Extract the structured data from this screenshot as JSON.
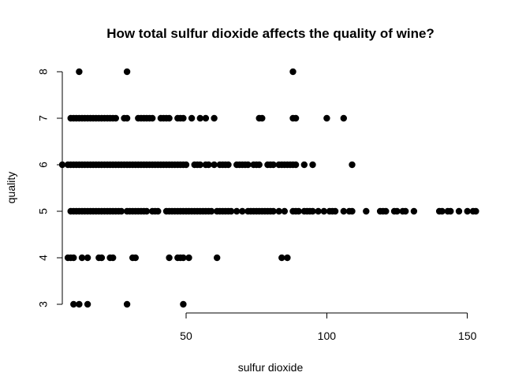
{
  "chart_data": {
    "type": "scatter",
    "title": "How total sulfur dioxide affects the quality of wine?",
    "xlabel": "sulfur dioxide",
    "ylabel": "quality",
    "xlim": [
      6,
      154
    ],
    "ylim": [
      3,
      8
    ],
    "x_ticks": [
      50,
      100,
      150
    ],
    "y_ticks": [
      3,
      4,
      5,
      6,
      7,
      8
    ],
    "grid": false,
    "legend": "none",
    "marker": "filled-circle",
    "point_color": "#000000",
    "series": [
      {
        "points": [
          {
            "x": 12,
            "y": 8
          },
          {
            "x": 29,
            "y": 8
          },
          {
            "x": 88,
            "y": 8
          },
          {
            "x": 9,
            "y": 7
          },
          {
            "x": 10,
            "y": 7
          },
          {
            "x": 11,
            "y": 7
          },
          {
            "x": 12,
            "y": 7
          },
          {
            "x": 13,
            "y": 7
          },
          {
            "x": 14,
            "y": 7
          },
          {
            "x": 15,
            "y": 7
          },
          {
            "x": 16,
            "y": 7
          },
          {
            "x": 17,
            "y": 7
          },
          {
            "x": 18,
            "y": 7
          },
          {
            "x": 19,
            "y": 7
          },
          {
            "x": 20,
            "y": 7
          },
          {
            "x": 21,
            "y": 7
          },
          {
            "x": 22,
            "y": 7
          },
          {
            "x": 23,
            "y": 7
          },
          {
            "x": 24,
            "y": 7
          },
          {
            "x": 25,
            "y": 7
          },
          {
            "x": 28,
            "y": 7
          },
          {
            "x": 29,
            "y": 7
          },
          {
            "x": 33,
            "y": 7
          },
          {
            "x": 34,
            "y": 7
          },
          {
            "x": 35,
            "y": 7
          },
          {
            "x": 36,
            "y": 7
          },
          {
            "x": 37,
            "y": 7
          },
          {
            "x": 38,
            "y": 7
          },
          {
            "x": 41,
            "y": 7
          },
          {
            "x": 42,
            "y": 7
          },
          {
            "x": 43,
            "y": 7
          },
          {
            "x": 44,
            "y": 7
          },
          {
            "x": 47,
            "y": 7
          },
          {
            "x": 48,
            "y": 7
          },
          {
            "x": 49,
            "y": 7
          },
          {
            "x": 52,
            "y": 7
          },
          {
            "x": 55,
            "y": 7
          },
          {
            "x": 57,
            "y": 7
          },
          {
            "x": 60,
            "y": 7
          },
          {
            "x": 76,
            "y": 7
          },
          {
            "x": 77,
            "y": 7
          },
          {
            "x": 88,
            "y": 7
          },
          {
            "x": 89,
            "y": 7
          },
          {
            "x": 100,
            "y": 7
          },
          {
            "x": 106,
            "y": 7
          },
          {
            "x": 6,
            "y": 6
          },
          {
            "x": 8,
            "y": 6
          },
          {
            "x": 9,
            "y": 6
          },
          {
            "x": 10,
            "y": 6
          },
          {
            "x": 11,
            "y": 6
          },
          {
            "x": 12,
            "y": 6
          },
          {
            "x": 13,
            "y": 6
          },
          {
            "x": 14,
            "y": 6
          },
          {
            "x": 15,
            "y": 6
          },
          {
            "x": 16,
            "y": 6
          },
          {
            "x": 17,
            "y": 6
          },
          {
            "x": 18,
            "y": 6
          },
          {
            "x": 19,
            "y": 6
          },
          {
            "x": 20,
            "y": 6
          },
          {
            "x": 21,
            "y": 6
          },
          {
            "x": 22,
            "y": 6
          },
          {
            "x": 23,
            "y": 6
          },
          {
            "x": 24,
            "y": 6
          },
          {
            "x": 25,
            "y": 6
          },
          {
            "x": 26,
            "y": 6
          },
          {
            "x": 27,
            "y": 6
          },
          {
            "x": 28,
            "y": 6
          },
          {
            "x": 29,
            "y": 6
          },
          {
            "x": 30,
            "y": 6
          },
          {
            "x": 31,
            "y": 6
          },
          {
            "x": 32,
            "y": 6
          },
          {
            "x": 33,
            "y": 6
          },
          {
            "x": 34,
            "y": 6
          },
          {
            "x": 35,
            "y": 6
          },
          {
            "x": 36,
            "y": 6
          },
          {
            "x": 37,
            "y": 6
          },
          {
            "x": 38,
            "y": 6
          },
          {
            "x": 39,
            "y": 6
          },
          {
            "x": 40,
            "y": 6
          },
          {
            "x": 41,
            "y": 6
          },
          {
            "x": 42,
            "y": 6
          },
          {
            "x": 43,
            "y": 6
          },
          {
            "x": 44,
            "y": 6
          },
          {
            "x": 45,
            "y": 6
          },
          {
            "x": 46,
            "y": 6
          },
          {
            "x": 47,
            "y": 6
          },
          {
            "x": 48,
            "y": 6
          },
          {
            "x": 49,
            "y": 6
          },
          {
            "x": 50,
            "y": 6
          },
          {
            "x": 53,
            "y": 6
          },
          {
            "x": 54,
            "y": 6
          },
          {
            "x": 55,
            "y": 6
          },
          {
            "x": 57,
            "y": 6
          },
          {
            "x": 58,
            "y": 6
          },
          {
            "x": 60,
            "y": 6
          },
          {
            "x": 62,
            "y": 6
          },
          {
            "x": 63,
            "y": 6
          },
          {
            "x": 64,
            "y": 6
          },
          {
            "x": 65,
            "y": 6
          },
          {
            "x": 68,
            "y": 6
          },
          {
            "x": 69,
            "y": 6
          },
          {
            "x": 70,
            "y": 6
          },
          {
            "x": 71,
            "y": 6
          },
          {
            "x": 72,
            "y": 6
          },
          {
            "x": 74,
            "y": 6
          },
          {
            "x": 75,
            "y": 6
          },
          {
            "x": 76,
            "y": 6
          },
          {
            "x": 79,
            "y": 6
          },
          {
            "x": 80,
            "y": 6
          },
          {
            "x": 81,
            "y": 6
          },
          {
            "x": 83,
            "y": 6
          },
          {
            "x": 84,
            "y": 6
          },
          {
            "x": 85,
            "y": 6
          },
          {
            "x": 86,
            "y": 6
          },
          {
            "x": 87,
            "y": 6
          },
          {
            "x": 88,
            "y": 6
          },
          {
            "x": 89,
            "y": 6
          },
          {
            "x": 92,
            "y": 6
          },
          {
            "x": 95,
            "y": 6
          },
          {
            "x": 109,
            "y": 6
          },
          {
            "x": 9,
            "y": 5
          },
          {
            "x": 10,
            "y": 5
          },
          {
            "x": 11,
            "y": 5
          },
          {
            "x": 12,
            "y": 5
          },
          {
            "x": 13,
            "y": 5
          },
          {
            "x": 14,
            "y": 5
          },
          {
            "x": 15,
            "y": 5
          },
          {
            "x": 16,
            "y": 5
          },
          {
            "x": 17,
            "y": 5
          },
          {
            "x": 18,
            "y": 5
          },
          {
            "x": 19,
            "y": 5
          },
          {
            "x": 20,
            "y": 5
          },
          {
            "x": 21,
            "y": 5
          },
          {
            "x": 22,
            "y": 5
          },
          {
            "x": 23,
            "y": 5
          },
          {
            "x": 24,
            "y": 5
          },
          {
            "x": 25,
            "y": 5
          },
          {
            "x": 26,
            "y": 5
          },
          {
            "x": 27,
            "y": 5
          },
          {
            "x": 29,
            "y": 5
          },
          {
            "x": 30,
            "y": 5
          },
          {
            "x": 31,
            "y": 5
          },
          {
            "x": 32,
            "y": 5
          },
          {
            "x": 33,
            "y": 5
          },
          {
            "x": 34,
            "y": 5
          },
          {
            "x": 35,
            "y": 5
          },
          {
            "x": 36,
            "y": 5
          },
          {
            "x": 38,
            "y": 5
          },
          {
            "x": 39,
            "y": 5
          },
          {
            "x": 40,
            "y": 5
          },
          {
            "x": 43,
            "y": 5
          },
          {
            "x": 44,
            "y": 5
          },
          {
            "x": 45,
            "y": 5
          },
          {
            "x": 46,
            "y": 5
          },
          {
            "x": 47,
            "y": 5
          },
          {
            "x": 48,
            "y": 5
          },
          {
            "x": 49,
            "y": 5
          },
          {
            "x": 50,
            "y": 5
          },
          {
            "x": 51,
            "y": 5
          },
          {
            "x": 52,
            "y": 5
          },
          {
            "x": 53,
            "y": 5
          },
          {
            "x": 54,
            "y": 5
          },
          {
            "x": 55,
            "y": 5
          },
          {
            "x": 56,
            "y": 5
          },
          {
            "x": 57,
            "y": 5
          },
          {
            "x": 58,
            "y": 5
          },
          {
            "x": 59,
            "y": 5
          },
          {
            "x": 61,
            "y": 5
          },
          {
            "x": 62,
            "y": 5
          },
          {
            "x": 63,
            "y": 5
          },
          {
            "x": 64,
            "y": 5
          },
          {
            "x": 65,
            "y": 5
          },
          {
            "x": 66,
            "y": 5
          },
          {
            "x": 68,
            "y": 5
          },
          {
            "x": 70,
            "y": 5
          },
          {
            "x": 72,
            "y": 5
          },
          {
            "x": 73,
            "y": 5
          },
          {
            "x": 74,
            "y": 5
          },
          {
            "x": 75,
            "y": 5
          },
          {
            "x": 76,
            "y": 5
          },
          {
            "x": 77,
            "y": 5
          },
          {
            "x": 78,
            "y": 5
          },
          {
            "x": 79,
            "y": 5
          },
          {
            "x": 80,
            "y": 5
          },
          {
            "x": 81,
            "y": 5
          },
          {
            "x": 83,
            "y": 5
          },
          {
            "x": 85,
            "y": 5
          },
          {
            "x": 88,
            "y": 5
          },
          {
            "x": 89,
            "y": 5
          },
          {
            "x": 90,
            "y": 5
          },
          {
            "x": 92,
            "y": 5
          },
          {
            "x": 93,
            "y": 5
          },
          {
            "x": 94,
            "y": 5
          },
          {
            "x": 95,
            "y": 5
          },
          {
            "x": 97,
            "y": 5
          },
          {
            "x": 99,
            "y": 5
          },
          {
            "x": 101,
            "y": 5
          },
          {
            "x": 102,
            "y": 5
          },
          {
            "x": 103,
            "y": 5
          },
          {
            "x": 106,
            "y": 5
          },
          {
            "x": 108,
            "y": 5
          },
          {
            "x": 109,
            "y": 5
          },
          {
            "x": 114,
            "y": 5
          },
          {
            "x": 119,
            "y": 5
          },
          {
            "x": 120,
            "y": 5
          },
          {
            "x": 121,
            "y": 5
          },
          {
            "x": 124,
            "y": 5
          },
          {
            "x": 125,
            "y": 5
          },
          {
            "x": 127,
            "y": 5
          },
          {
            "x": 128,
            "y": 5
          },
          {
            "x": 131,
            "y": 5
          },
          {
            "x": 140,
            "y": 5
          },
          {
            "x": 141,
            "y": 5
          },
          {
            "x": 143,
            "y": 5
          },
          {
            "x": 144,
            "y": 5
          },
          {
            "x": 147,
            "y": 5
          },
          {
            "x": 150,
            "y": 5
          },
          {
            "x": 152,
            "y": 5
          },
          {
            "x": 153,
            "y": 5
          },
          {
            "x": 8,
            "y": 4
          },
          {
            "x": 9,
            "y": 4
          },
          {
            "x": 10,
            "y": 4
          },
          {
            "x": 13,
            "y": 4
          },
          {
            "x": 15,
            "y": 4
          },
          {
            "x": 19,
            "y": 4
          },
          {
            "x": 20,
            "y": 4
          },
          {
            "x": 23,
            "y": 4
          },
          {
            "x": 24,
            "y": 4
          },
          {
            "x": 31,
            "y": 4
          },
          {
            "x": 32,
            "y": 4
          },
          {
            "x": 44,
            "y": 4
          },
          {
            "x": 47,
            "y": 4
          },
          {
            "x": 48,
            "y": 4
          },
          {
            "x": 49,
            "y": 4
          },
          {
            "x": 51,
            "y": 4
          },
          {
            "x": 61,
            "y": 4
          },
          {
            "x": 84,
            "y": 4
          },
          {
            "x": 86,
            "y": 4
          },
          {
            "x": 10,
            "y": 3
          },
          {
            "x": 12,
            "y": 3
          },
          {
            "x": 15,
            "y": 3
          },
          {
            "x": 29,
            "y": 3
          },
          {
            "x": 49,
            "y": 3
          }
        ]
      }
    ]
  }
}
